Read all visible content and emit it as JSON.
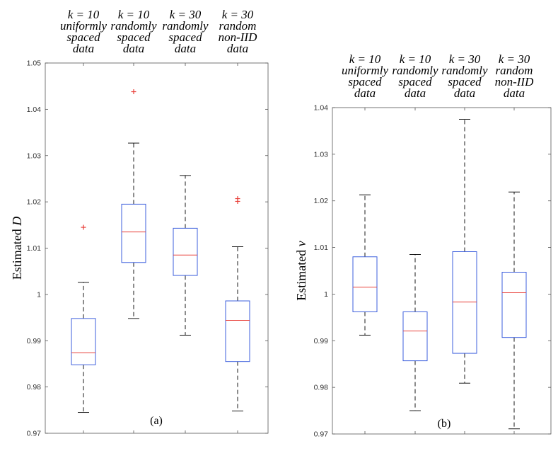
{
  "chart_data": [
    {
      "type": "box",
      "panel_label": "(a)",
      "ylabel_prefix": "Estimated ",
      "ylabel_var": "D",
      "ylim": [
        0.97,
        1.05
      ],
      "yticks": [
        0.97,
        0.98,
        0.99,
        1.0,
        1.01,
        1.02,
        1.03,
        1.04,
        1.05
      ],
      "ytick_labels": [
        "0.97",
        "0.98",
        "0.99",
        "1",
        "1.01",
        "1.02",
        "1.03",
        "1.04",
        "1.05"
      ],
      "grid": false,
      "categories": [
        [
          "k = 10",
          "uniformly",
          "spaced",
          "data"
        ],
        [
          "k = 10",
          "randomly",
          "spaced",
          "data"
        ],
        [
          "k = 30",
          "randomly",
          "spaced",
          "data"
        ],
        [
          "k = 30",
          "random",
          "non-IID",
          "data"
        ]
      ],
      "boxes": [
        {
          "whisker_low": 0.9745,
          "q1": 0.9848,
          "median": 0.9874,
          "q3": 0.9948,
          "whisker_high": 1.0026,
          "outliers": [
            1.0145
          ]
        },
        {
          "whisker_low": 0.9948,
          "q1": 1.0069,
          "median": 1.0135,
          "q3": 1.0195,
          "whisker_high": 1.0327,
          "outliers": [
            1.0438
          ]
        },
        {
          "whisker_low": 0.9912,
          "q1": 1.0041,
          "median": 1.0085,
          "q3": 1.0143,
          "whisker_high": 1.0257,
          "outliers": []
        },
        {
          "whisker_low": 0.9748,
          "q1": 0.9855,
          "median": 0.9944,
          "q3": 0.9986,
          "whisker_high": 1.0103,
          "outliers": [
            1.0201,
            1.0207
          ]
        }
      ]
    },
    {
      "type": "box",
      "panel_label": "(b)",
      "ylabel_prefix": "Estimated ",
      "ylabel_var": "ν",
      "ylim": [
        0.97,
        1.04
      ],
      "yticks": [
        0.97,
        0.98,
        0.99,
        1.0,
        1.01,
        1.02,
        1.03,
        1.04
      ],
      "ytick_labels": [
        "0.97",
        "0.98",
        "0.99",
        "1",
        "1.01",
        "1.02",
        "1.03",
        "1.04"
      ],
      "grid": false,
      "categories": [
        [
          "k = 10",
          "uniformly",
          "spaced",
          "data"
        ],
        [
          "k = 10",
          "randomly",
          "spaced",
          "data"
        ],
        [
          "k = 30",
          "randomly",
          "spaced",
          "data"
        ],
        [
          "k = 30",
          "random",
          "non-IID",
          "data"
        ]
      ],
      "boxes": [
        {
          "whisker_low": 0.9912,
          "q1": 0.9962,
          "median": 1.0015,
          "q3": 1.008,
          "whisker_high": 1.0213,
          "outliers": []
        },
        {
          "whisker_low": 0.975,
          "q1": 0.9857,
          "median": 0.9921,
          "q3": 0.9962,
          "whisker_high": 1.0085,
          "outliers": []
        },
        {
          "whisker_low": 0.9809,
          "q1": 0.9873,
          "median": 0.9983,
          "q3": 1.0091,
          "whisker_high": 1.0375,
          "outliers": []
        },
        {
          "whisker_low": 0.9711,
          "q1": 0.9907,
          "median": 1.0003,
          "q3": 1.0047,
          "whisker_high": 1.0219,
          "outliers": []
        }
      ]
    }
  ],
  "colors": {
    "box": "#3d5fdd",
    "median": "#e8403a",
    "outlier": "#e8403a",
    "whisker": "#000000",
    "axis": "#555555"
  }
}
